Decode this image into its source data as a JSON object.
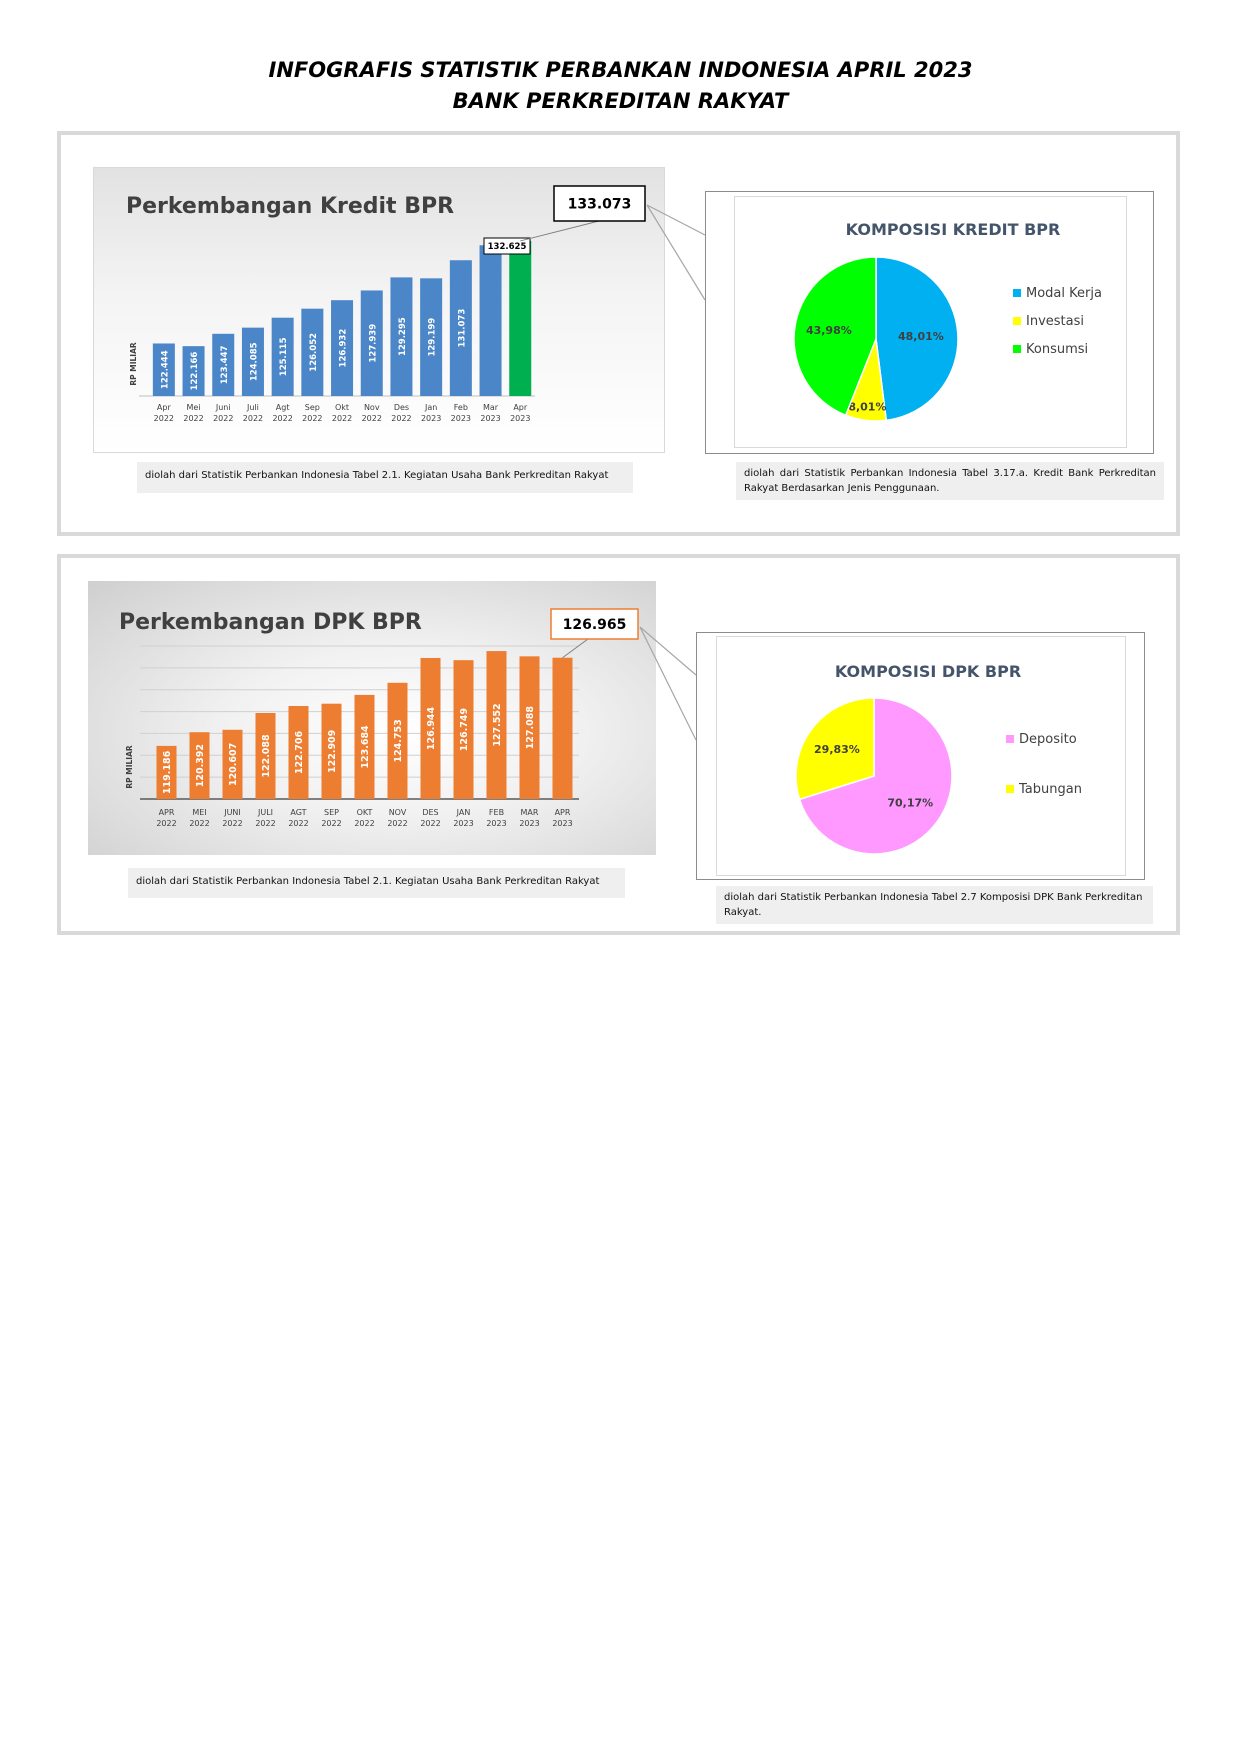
{
  "header": {
    "title_line1": "INFOGRAFIS STATISTIK PERBANKAN INDONESIA APRIL 2023",
    "title_line2": "BANK PERKREDITAN RAKYAT"
  },
  "kredit": {
    "source_text": "diolah dari Statistik Perbankan Indonesia Tabel 2.1. Kegiatan Usaha Bank Perkreditan Rakyat",
    "pie_source_text": "diolah dari Statistik Perbankan Indonesia Tabel 3.17.a. Kredit Bank Perkreditan Rakyat Berdasarkan Jenis Penggunaan."
  },
  "dpk": {
    "source_text": "diolah dari Statistik Perbankan Indonesia Tabel 2.1. Kegiatan Usaha Bank Perkreditan Rakyat",
    "pie_source_text": "diolah dari Statistik Perbankan Indonesia Tabel 2.7 Komposisi DPK Bank Perkreditan Rakyat."
  },
  "chart_data": [
    {
      "type": "bar",
      "title": "Perkembangan Kredit BPR",
      "ylabel": "RP MILIAR",
      "categories": [
        [
          "Apr",
          "2022"
        ],
        [
          "Mei",
          "2022"
        ],
        [
          "Juni",
          "2022"
        ],
        [
          "Juli",
          "2022"
        ],
        [
          "Agt",
          "2022"
        ],
        [
          "Sep",
          "2022"
        ],
        [
          "Okt",
          "2022"
        ],
        [
          "Nov",
          "2022"
        ],
        [
          "Des",
          "2022"
        ],
        [
          "Jan",
          "2023"
        ],
        [
          "Feb",
          "2023"
        ],
        [
          "Mar",
          "2023"
        ],
        [
          "Apr",
          "2023"
        ]
      ],
      "values": [
        122444,
        122166,
        123447,
        124085,
        125115,
        126052,
        126932,
        127939,
        129295,
        129199,
        131073,
        132625,
        133073
      ],
      "value_labels": [
        "122.444",
        "122.166",
        "123.447",
        "124.085",
        "125.115",
        "126.052",
        "126.932",
        "127.939",
        "129.295",
        "129.199",
        "131.073",
        "",
        ""
      ],
      "callouts": [
        {
          "category_index": 11,
          "label": "132.625"
        },
        {
          "category_index": 12,
          "label": "133.073"
        }
      ],
      "ylim": [
        117000,
        134000
      ],
      "grid": false,
      "colors": {
        "bar": "#4a86c8",
        "highlight": "#00b050"
      }
    },
    {
      "type": "pie",
      "title": "KOMPOSISI KREDIT BPR",
      "legend_position": "right",
      "slices": [
        {
          "label": "Modal Kerja",
          "value": 48.01,
          "text": "48,01%",
          "color": "#00b0f0"
        },
        {
          "label": "Investasi",
          "value": 8.01,
          "text": "8,01%",
          "color": "#ffff00"
        },
        {
          "label": "Konsumsi",
          "value": 43.98,
          "text": "43,98%",
          "color": "#00ff00"
        }
      ]
    },
    {
      "type": "bar",
      "title": "Perkembangan DPK BPR",
      "ylabel": "RP MILIAR",
      "categories": [
        [
          "APR",
          "2022"
        ],
        [
          "MEI",
          "2022"
        ],
        [
          "JUNI",
          "2022"
        ],
        [
          "JULI",
          "2022"
        ],
        [
          "AGT",
          "2022"
        ],
        [
          "SEP",
          "2022"
        ],
        [
          "OKT",
          "2022"
        ],
        [
          "NOV",
          "2022"
        ],
        [
          "DES",
          "2022"
        ],
        [
          "JAN",
          "2023"
        ],
        [
          "FEB",
          "2023"
        ],
        [
          "MAR",
          "2023"
        ],
        [
          "APR",
          "2023"
        ]
      ],
      "values": [
        119186,
        120392,
        120607,
        122088,
        122706,
        122909,
        123684,
        124753,
        126944,
        126749,
        127552,
        127088,
        126965
      ],
      "value_labels": [
        "119.186",
        "120.392",
        "120.607",
        "122.088",
        "122.706",
        "122.909",
        "123.684",
        "124.753",
        "126.944",
        "126.749",
        "127.552",
        "127.088",
        ""
      ],
      "callouts": [
        {
          "category_index": 12,
          "label": "126.965"
        }
      ],
      "ylim": [
        114500,
        128000
      ],
      "grid": true,
      "colors": {
        "bar": "#ed7d31"
      }
    },
    {
      "type": "pie",
      "title": "KOMPOSISI DPK BPR",
      "legend_position": "right",
      "slices": [
        {
          "label": "Deposito",
          "value": 70.17,
          "text": "70,17%",
          "color": "#ff99ff"
        },
        {
          "label": "Tabungan",
          "value": 29.83,
          "text": "29,83%",
          "color": "#ffff00"
        }
      ]
    }
  ]
}
